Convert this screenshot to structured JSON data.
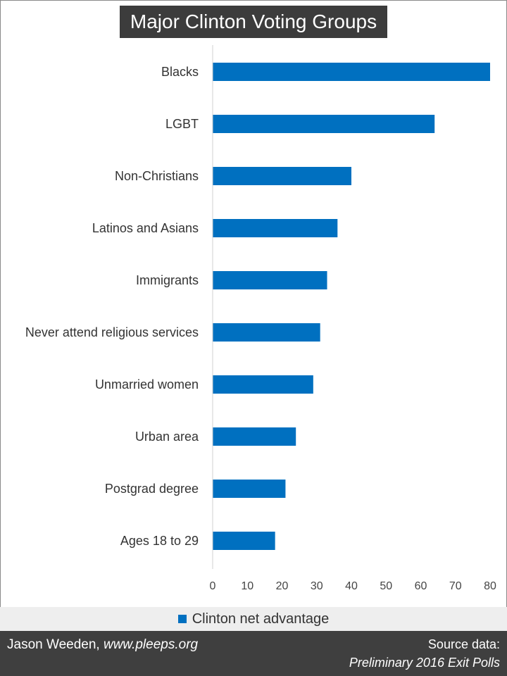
{
  "chart_data": {
    "type": "bar",
    "orientation": "horizontal",
    "title": "Major Clinton Voting Groups",
    "categories": [
      "Blacks",
      "LGBT",
      "Non-Christians",
      "Latinos and Asians",
      "Immigrants",
      "Never attend religious services",
      "Unmarried women",
      "Urban area",
      "Postgrad degree",
      "Ages 18 to 29"
    ],
    "series": [
      {
        "name": "Clinton net advantage",
        "values": [
          80,
          64,
          40,
          36,
          33,
          31,
          29,
          24,
          21,
          18
        ]
      }
    ],
    "xlim": [
      0,
      80
    ],
    "xticks": [
      "0",
      "10",
      "20",
      "30",
      "40",
      "50",
      "60",
      "70",
      "80"
    ],
    "grid": false,
    "legend_position": "bottom",
    "bar_color": "#0070c0"
  },
  "footer": {
    "author": "Jason Weeden, ",
    "site": "www.pleeps.org",
    "source_label": "Source data:",
    "source_name": "Preliminary 2016 Exit Polls"
  }
}
